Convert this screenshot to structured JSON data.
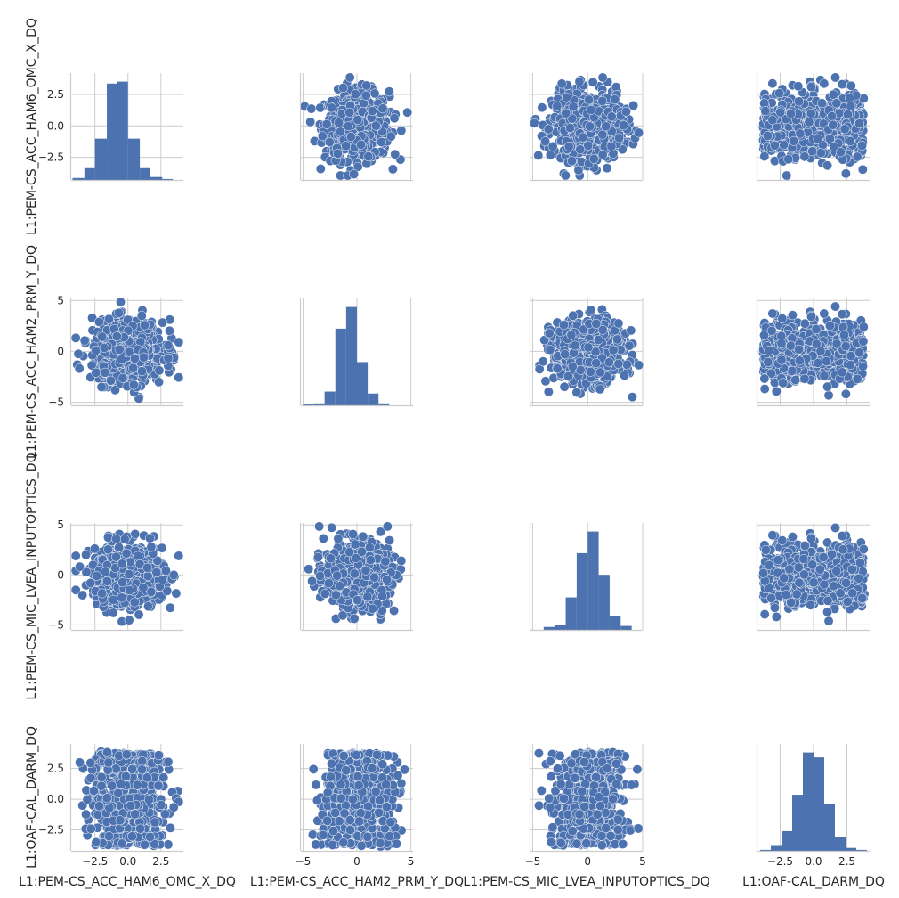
{
  "chart_data": {
    "type": "pairplot",
    "grid": true,
    "variables": [
      "L1:PEM-CS_ACC_HAM6_OMC_X_DQ",
      "L1:PEM-CS_ACC_HAM2_PRM_Y_DQ",
      "L1:PEM-CS_MIC_LVEA_INPUTOPTICS_DQ",
      "L1:OAF-CAL_DARM_DQ"
    ],
    "x_ticks": [
      [
        -2.5,
        0.0,
        2.5
      ],
      [
        -5,
        0,
        5
      ],
      [
        -5,
        0,
        5
      ],
      [
        -2.5,
        0.0,
        2.5
      ]
    ],
    "x_tick_labels": [
      [
        "−2.5",
        "0.0",
        "2.5"
      ],
      [
        "−5",
        "0",
        "5"
      ],
      [
        "−5",
        "0",
        "5"
      ],
      [
        "−2.5",
        "0.0",
        "2.5"
      ]
    ],
    "x_ranges": [
      [
        -4.3,
        4.2
      ],
      [
        -5.2,
        5.2
      ],
      [
        -5.2,
        5.0
      ],
      [
        -4.2,
        4.2
      ]
    ],
    "y_ticks": [
      [
        -2.5,
        0.0,
        2.5
      ],
      [
        -5,
        0,
        5
      ],
      [
        -5,
        0,
        5
      ],
      [
        -2.5,
        0.0,
        2.5
      ]
    ],
    "y_tick_labels": [
      [
        "−2.5",
        "0.0",
        "2.5"
      ],
      [
        "−5",
        "0",
        "5"
      ],
      [
        "−5",
        "0",
        "5"
      ],
      [
        "−2.5",
        "0.0",
        "2.5"
      ]
    ],
    "y_ranges": [
      [
        -4.3,
        4.2
      ],
      [
        -5.3,
        5.2
      ],
      [
        -5.5,
        5.2
      ],
      [
        -4.2,
        4.5
      ]
    ],
    "histograms": [
      {
        "bins": [
          -4.2,
          -3.3,
          -2.5,
          -1.6,
          -0.8,
          0.0,
          0.9,
          1.7,
          2.6,
          3.4,
          4.2
        ],
        "counts": [
          0.02,
          0.12,
          0.42,
          0.98,
          1.0,
          0.42,
          0.12,
          0.03,
          0.01,
          0.0
        ]
      },
      {
        "bins": [
          -5.0,
          -4.0,
          -3.0,
          -2.0,
          -1.0,
          0.0,
          1.0,
          2.0,
          3.0,
          4.0,
          5.0
        ],
        "counts": [
          0.01,
          0.02,
          0.14,
          0.78,
          1.0,
          0.44,
          0.12,
          0.02,
          0.0,
          0.0
        ]
      },
      {
        "bins": [
          -5.0,
          -4.0,
          -3.0,
          -2.0,
          -1.0,
          0.0,
          1.0,
          2.0,
          3.0,
          4.0,
          5.0
        ],
        "counts": [
          0.0,
          0.03,
          0.05,
          0.33,
          0.78,
          1.0,
          0.56,
          0.14,
          0.04,
          0.0
        ]
      },
      {
        "bins": [
          -4.0,
          -3.2,
          -2.4,
          -1.6,
          -0.8,
          0.0,
          0.8,
          1.6,
          2.4,
          3.2,
          4.0
        ],
        "counts": [
          0.01,
          0.05,
          0.2,
          0.57,
          1.0,
          0.95,
          0.48,
          0.14,
          0.03,
          0.01
        ]
      }
    ],
    "scatter_spread": [
      3.9,
      4.3,
      4.6,
      3.9
    ],
    "darm_levels": [
      -3.6,
      -3.0,
      -2.4,
      -1.8,
      -1.2,
      -0.6,
      0.0,
      0.6,
      1.2,
      1.8,
      2.4,
      3.0,
      3.6
    ],
    "colors": {
      "marker": "#4c72b0",
      "marker_edge": "#ffffff",
      "grid": "#cccccc",
      "axis": "#cccccc",
      "text": "#262626"
    }
  }
}
